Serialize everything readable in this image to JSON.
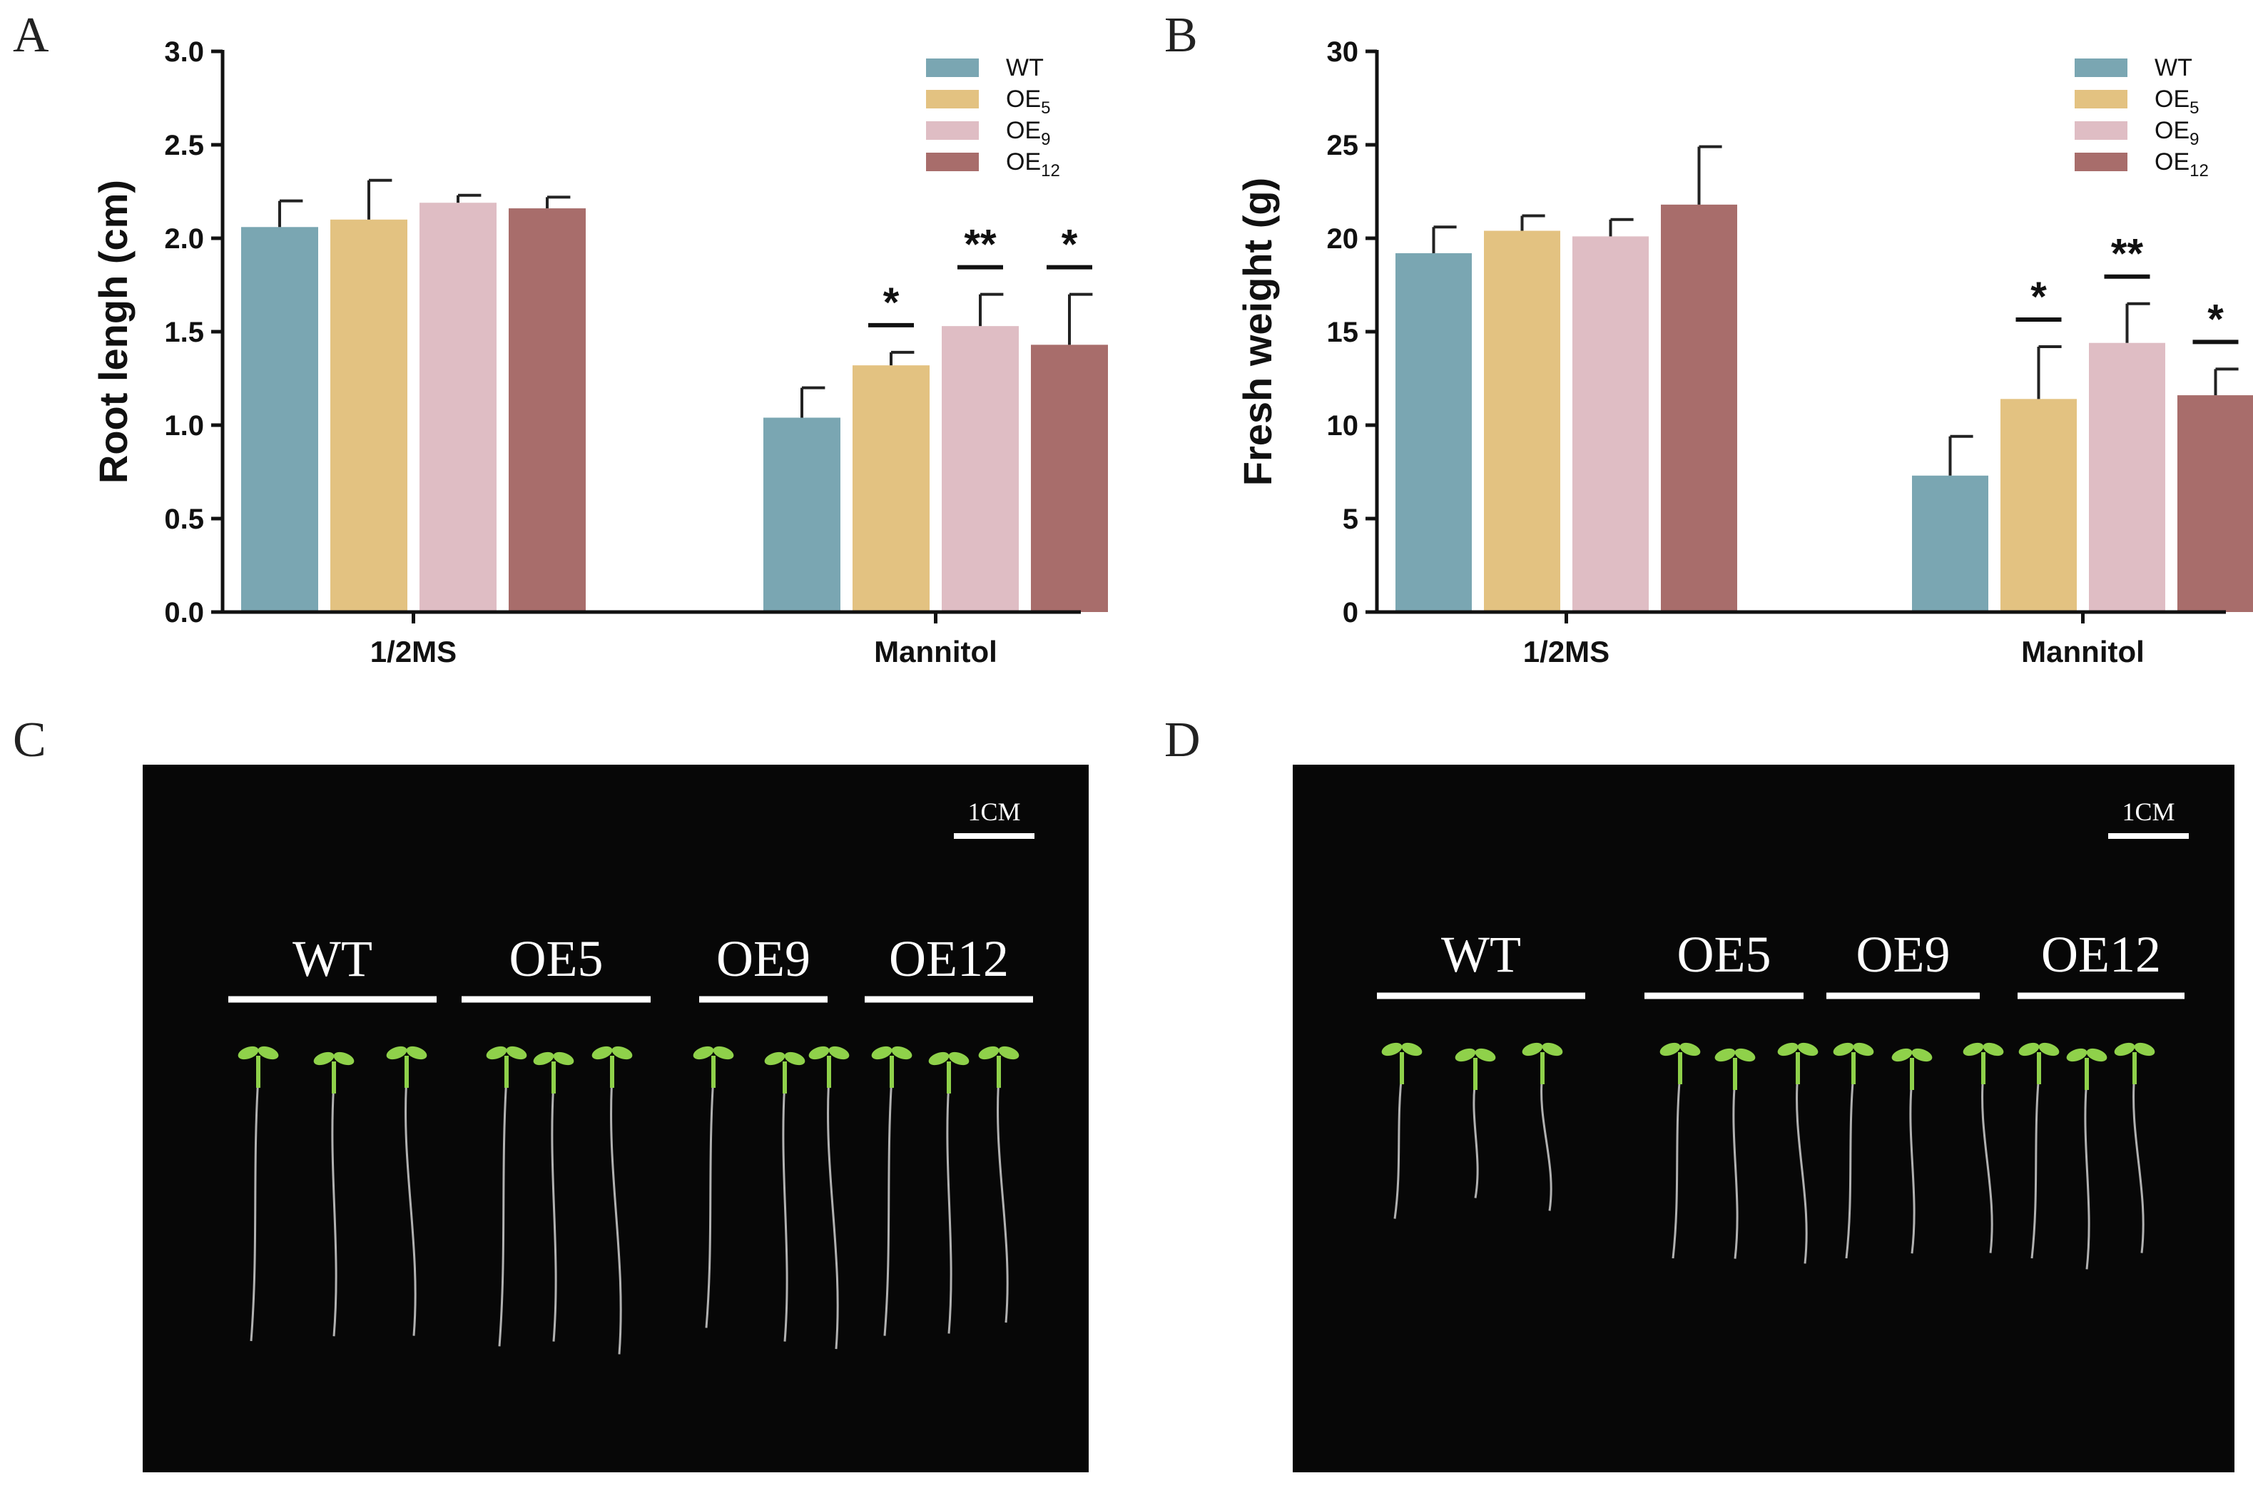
{
  "panels": {
    "A": "A",
    "B": "B",
    "C": "C",
    "D": "D"
  },
  "colors": {
    "WT": "#7aa6b2",
    "OE5": "#e3c281",
    "OE9": "#dfbdc4",
    "OE12": "#a86d6b",
    "photo_bg": "#070707",
    "seedling": "#8fd14a",
    "root": "#cfcfcf"
  },
  "chart_data": [
    {
      "panel": "A",
      "type": "bar",
      "ylabel": "Root lengh (cm)",
      "xlabel": "",
      "categories": [
        "1/2MS",
        "Mannitol"
      ],
      "ylim": [
        0,
        3.0
      ],
      "yticks": [
        "0.0",
        "0.5",
        "1.0",
        "1.5",
        "2.0",
        "2.5",
        "3.0"
      ],
      "legend_position": "top-right",
      "series": [
        {
          "name": "WT",
          "label_main": "WT",
          "label_sub": "",
          "values": [
            2.06,
            1.04
          ],
          "errors": [
            0.14,
            0.16
          ]
        },
        {
          "name": "OE5",
          "label_main": "OE",
          "label_sub": "5",
          "values": [
            2.1,
            1.32
          ],
          "errors": [
            0.21,
            0.07
          ]
        },
        {
          "name": "OE9",
          "label_main": "OE",
          "label_sub": "9",
          "values": [
            2.19,
            1.53
          ],
          "errors": [
            0.04,
            0.17
          ]
        },
        {
          "name": "OE12",
          "label_main": "OE",
          "label_sub": "12",
          "values": [
            2.16,
            1.43
          ],
          "errors": [
            0.06,
            0.27
          ]
        }
      ],
      "significance": [
        {
          "series": "OE5",
          "category": "Mannitol",
          "label": "*"
        },
        {
          "series": "OE9",
          "category": "Mannitol",
          "label": "**"
        },
        {
          "series": "OE12",
          "category": "Mannitol",
          "label": "*"
        }
      ]
    },
    {
      "panel": "B",
      "type": "bar",
      "ylabel": "Fresh weight (g)",
      "xlabel": "",
      "categories": [
        "1/2MS",
        "Mannitol"
      ],
      "ylim": [
        0,
        30
      ],
      "yticks": [
        "0",
        "5",
        "10",
        "15",
        "20",
        "25",
        "30"
      ],
      "legend_position": "top-right",
      "series": [
        {
          "name": "WT",
          "label_main": "WT",
          "label_sub": "",
          "values": [
            19.2,
            7.3
          ],
          "errors": [
            1.4,
            2.1
          ]
        },
        {
          "name": "OE5",
          "label_main": "OE",
          "label_sub": "5",
          "values": [
            20.4,
            11.4
          ],
          "errors": [
            0.8,
            2.8
          ]
        },
        {
          "name": "OE9",
          "label_main": "OE",
          "label_sub": "9",
          "values": [
            20.1,
            14.4
          ],
          "errors": [
            0.9,
            2.1
          ]
        },
        {
          "name": "OE12",
          "label_main": "OE",
          "label_sub": "12",
          "values": [
            21.8,
            11.6
          ],
          "errors": [
            3.1,
            1.4
          ]
        }
      ],
      "significance": [
        {
          "series": "OE5",
          "category": "Mannitol",
          "label": "*"
        },
        {
          "series": "OE9",
          "category": "Mannitol",
          "label": "**"
        },
        {
          "series": "OE12",
          "category": "Mannitol",
          "label": "*"
        }
      ]
    }
  ],
  "photos": [
    {
      "panel": "C",
      "scale_label": "1CM",
      "groups": [
        {
          "label": "WT",
          "seedlings": [
            {
              "root": 1.0
            },
            {
              "root": 0.96
            },
            {
              "root": 0.98
            }
          ]
        },
        {
          "label": "OE5",
          "seedlings": [
            {
              "root": 1.02
            },
            {
              "root": 0.98
            },
            {
              "root": 1.05
            }
          ]
        },
        {
          "label": "OE9",
          "seedlings": [
            {
              "root": 0.95
            },
            {
              "root": 0.98
            },
            {
              "root": 1.03
            }
          ]
        },
        {
          "label": "OE12",
          "seedlings": [
            {
              "root": 0.98
            },
            {
              "root": 0.95
            },
            {
              "root": 0.93
            }
          ]
        }
      ]
    },
    {
      "panel": "D",
      "scale_label": "1CM",
      "groups": [
        {
          "label": "WT",
          "seedlings": [
            {
              "root": 0.55
            },
            {
              "root": 0.45
            },
            {
              "root": 0.52
            }
          ]
        },
        {
          "label": "OE5",
          "seedlings": [
            {
              "root": 0.7
            },
            {
              "root": 0.68
            },
            {
              "root": 0.72
            }
          ]
        },
        {
          "label": "OE9",
          "seedlings": [
            {
              "root": 0.7
            },
            {
              "root": 0.66
            },
            {
              "root": 0.68
            }
          ]
        },
        {
          "label": "OE12",
          "seedlings": [
            {
              "root": 0.7
            },
            {
              "root": 0.72
            },
            {
              "root": 0.68
            }
          ]
        }
      ]
    }
  ]
}
